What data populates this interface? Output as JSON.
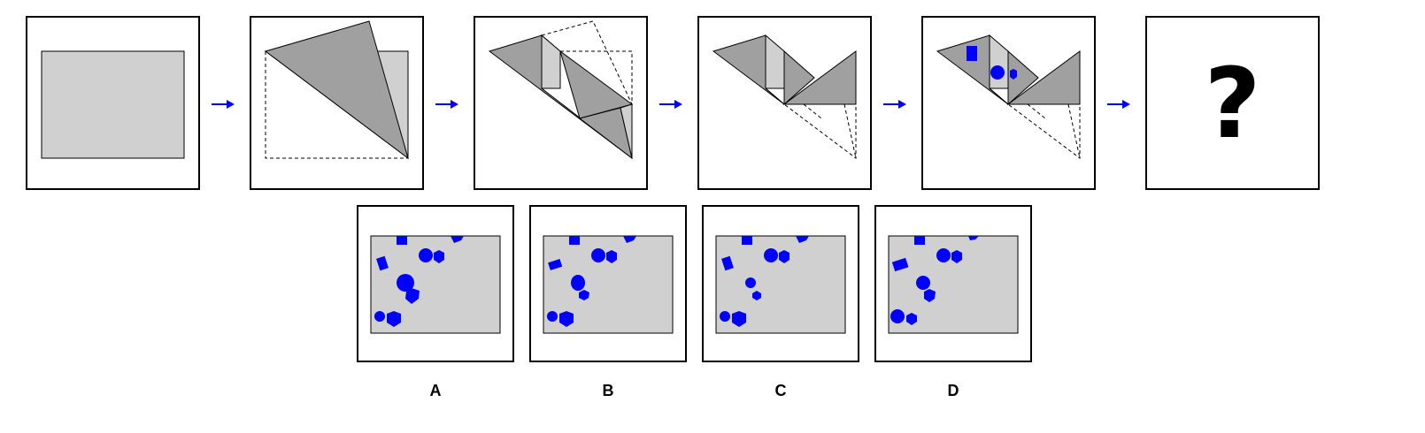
{
  "question_mark": "?",
  "options": [
    {
      "label": "A"
    },
    {
      "label": "B"
    },
    {
      "label": "C"
    },
    {
      "label": "D"
    }
  ],
  "colors": {
    "paper": "#d0d0d0",
    "fold": "#a0a0a0",
    "hole": "#0000ff",
    "arrow": "#0000ff",
    "outline": "#000000"
  },
  "icons": [
    "right-arrow-icon"
  ]
}
